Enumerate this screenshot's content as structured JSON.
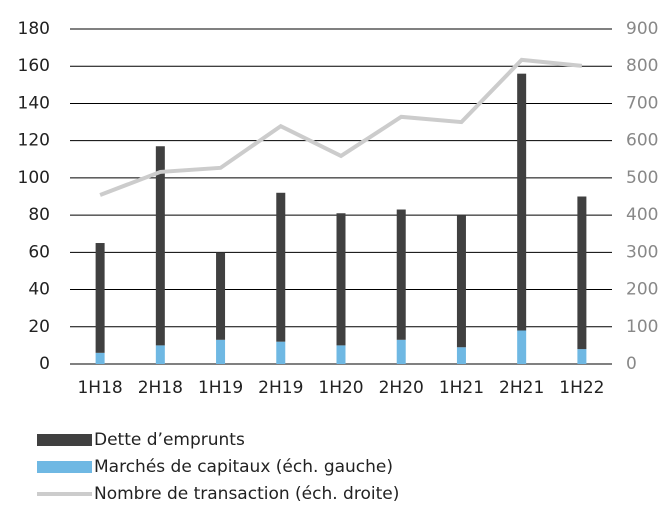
{
  "chart_data": {
    "type": "bar-line",
    "categories": [
      "1H18",
      "2H18",
      "1H19",
      "2H19",
      "1H20",
      "2H20",
      "1H21",
      "2H21",
      "1H22"
    ],
    "series": [
      {
        "name": "Dette d’emprunts",
        "type": "bar",
        "color": "#404040",
        "values": [
          59,
          107,
          47,
          80,
          71,
          70,
          71,
          138,
          82
        ]
      },
      {
        "name": "Marchés de capitaux (éch. gauche)",
        "type": "bar",
        "color": "#6fb8e3",
        "values": [
          6,
          10,
          13,
          12,
          10,
          13,
          9,
          18,
          8
        ]
      },
      {
        "name": "Nombre de transaction (éch. droite)",
        "type": "line",
        "axis": "y2",
        "color": "#cccccc",
        "values": [
          454,
          516,
          527,
          639,
          559,
          664,
          650,
          817,
          801
        ]
      }
    ],
    "stack_order": [
      1,
      0
    ],
    "ylim": [
      0,
      180
    ],
    "yticks": [
      0,
      20,
      40,
      60,
      80,
      100,
      120,
      140,
      160,
      180
    ],
    "y2lim": [
      0,
      900
    ],
    "y2ticks": [
      0,
      100,
      200,
      300,
      400,
      500,
      600,
      700,
      800,
      900
    ],
    "grid": true,
    "legend": "bottom"
  }
}
